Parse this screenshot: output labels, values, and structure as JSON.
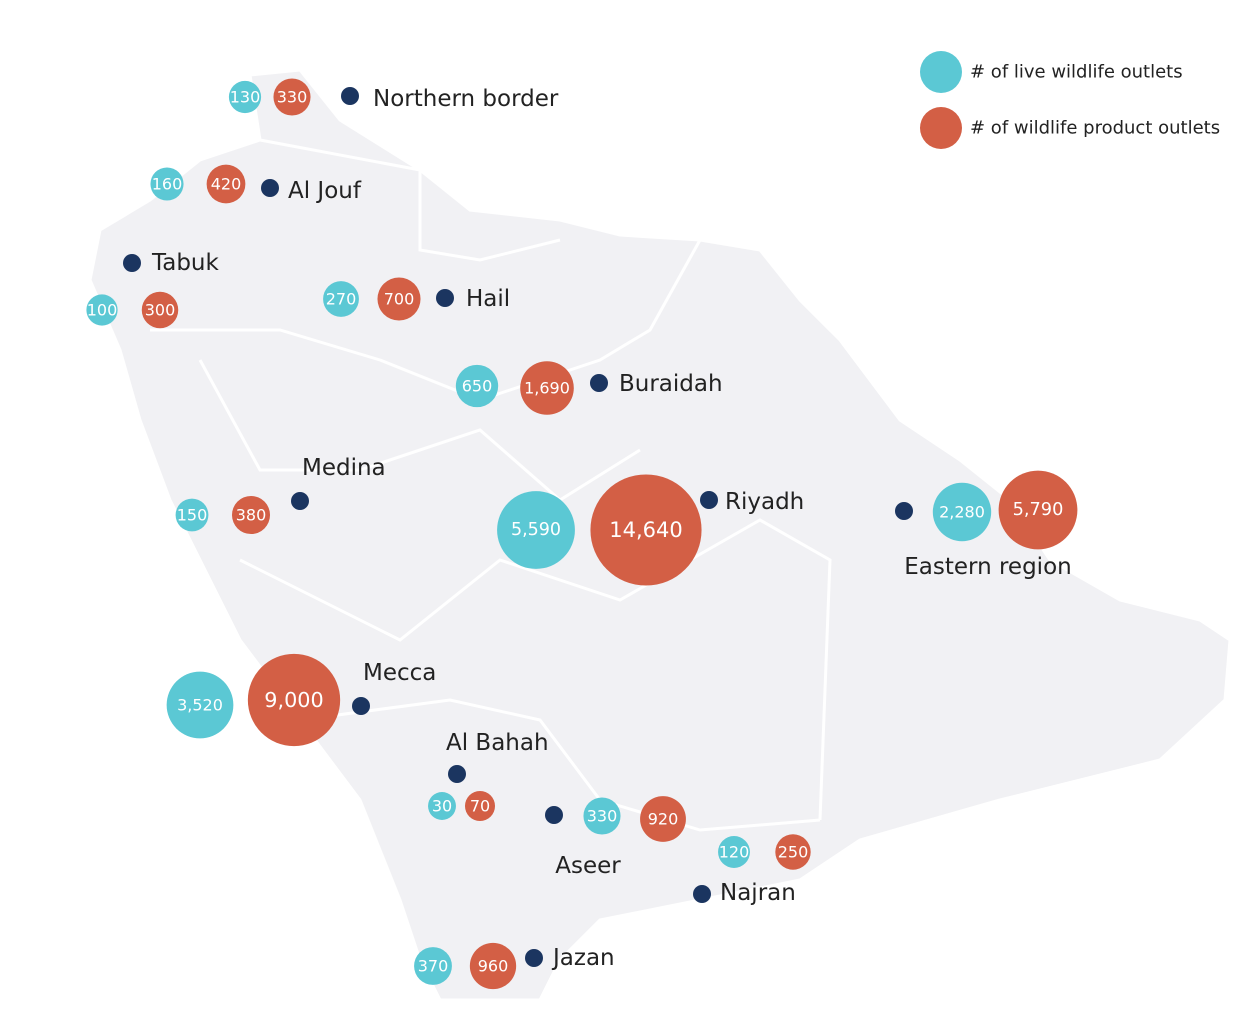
{
  "chart_data": {
    "type": "bubble-map",
    "categories": [
      "Northern border",
      "Al Jouf",
      "Tabuk",
      "Hail",
      "Buraidah",
      "Medina",
      "Riyadh",
      "Eastern region",
      "Mecca",
      "Al Bahah",
      "Aseer",
      "Najran",
      "Jazan"
    ],
    "series": [
      {
        "name": "# of live wildlife outlets",
        "color": "#5bc8d4",
        "values": [
          130,
          160,
          100,
          270,
          650,
          150,
          5590,
          2280,
          3520,
          30,
          330,
          120,
          370
        ],
        "value_labels": [
          "130",
          "160",
          "100",
          "270",
          "650",
          "150",
          "5,590",
          "2,280",
          "3,520",
          "30",
          "330",
          "120",
          "370"
        ]
      },
      {
        "name": "# of wildlife product outlets",
        "color": "#d35f45",
        "values": [
          330,
          420,
          300,
          700,
          1690,
          380,
          14640,
          5790,
          9000,
          70,
          920,
          250,
          960
        ],
        "value_labels": [
          "330",
          "420",
          "300",
          "700",
          "1,690",
          "380",
          "14,640",
          "5,790",
          "9,000",
          "70",
          "920",
          "250",
          "960"
        ]
      }
    ]
  }
}
